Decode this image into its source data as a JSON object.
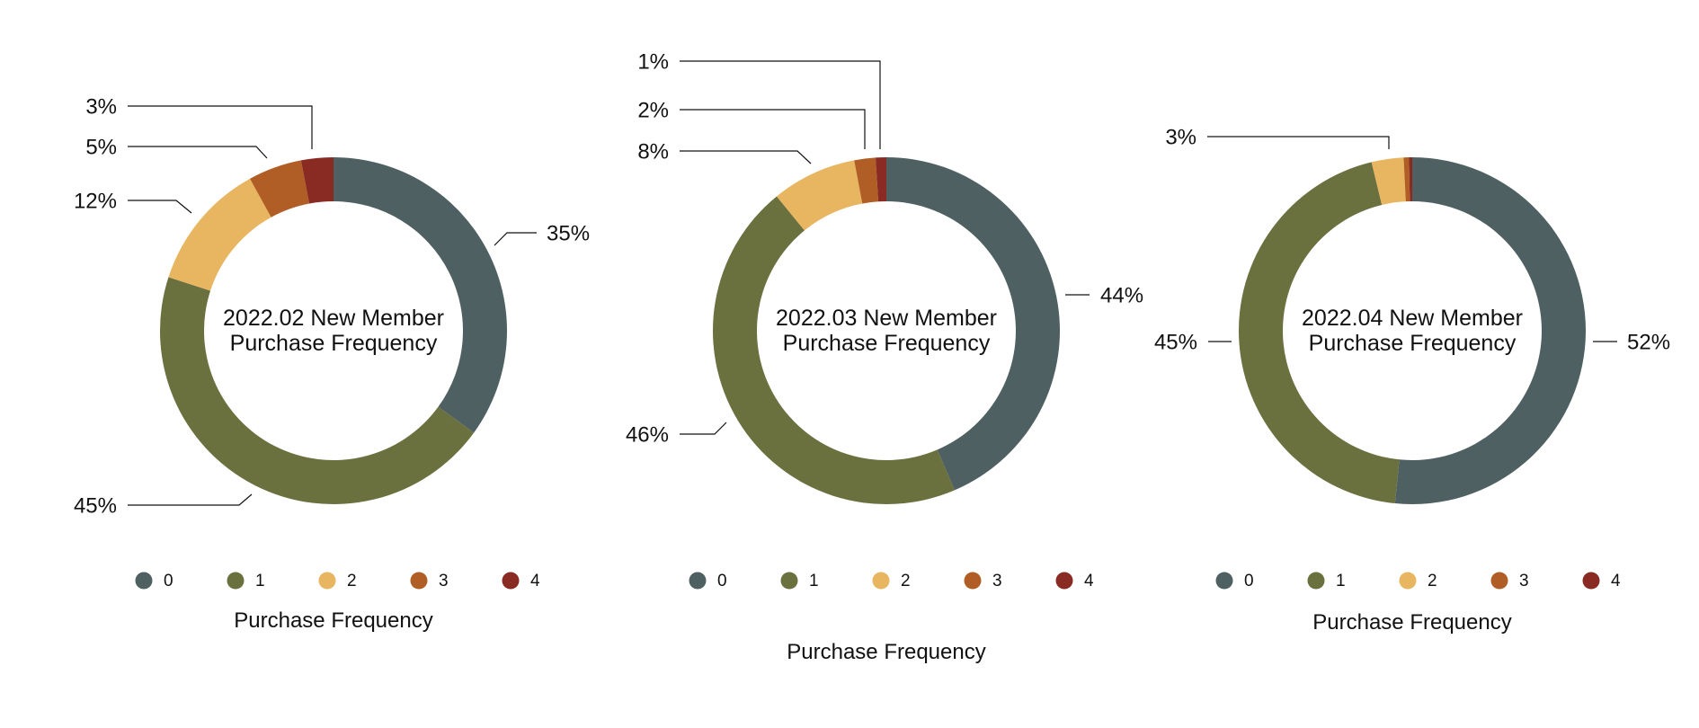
{
  "colors": {
    "0": "#4f6062",
    "1": "#6b703f",
    "2": "#e8b560",
    "3": "#b15e26",
    "4": "#892b22"
  },
  "chart_data": [
    {
      "type": "donut",
      "title_lines": [
        "2022.02 New Member",
        "Purchase Frequency"
      ],
      "xlabel": "Purchase Frequency",
      "legend_position": "bottom",
      "categories": [
        "0",
        "1",
        "2",
        "3",
        "4"
      ],
      "values": [
        35,
        45,
        12,
        5,
        3
      ],
      "labels": [
        "35%",
        "45%",
        "12%",
        "5%",
        "3%"
      ]
    },
    {
      "type": "donut",
      "title_lines": [
        "2022.03 New Member",
        "Purchase Frequency"
      ],
      "xlabel": "Purchase Frequency",
      "legend_position": "bottom",
      "categories": [
        "0",
        "1",
        "2",
        "3",
        "4"
      ],
      "values": [
        44,
        46,
        8,
        2,
        1
      ],
      "labels": [
        "44%",
        "46%",
        "8%",
        "2%",
        "1%"
      ]
    },
    {
      "type": "donut",
      "title_lines": [
        "2022.04 New Member",
        "Purchase Frequency"
      ],
      "xlabel": "Purchase Frequency",
      "legend_position": "bottom",
      "categories": [
        "0",
        "1",
        "2",
        "3",
        "4"
      ],
      "values": [
        52,
        45,
        3,
        0.5,
        0.3
      ],
      "labels": [
        "52%",
        "45%",
        "3%",
        null,
        null
      ]
    }
  ]
}
